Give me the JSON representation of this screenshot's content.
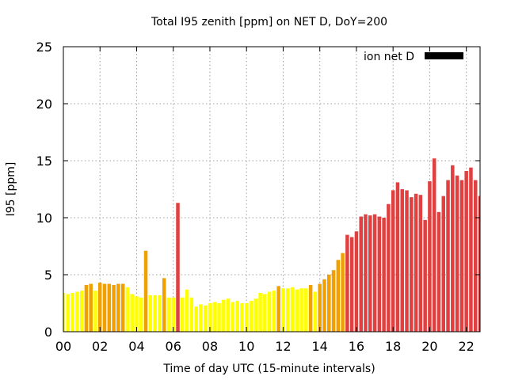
{
  "chart_data": {
    "type": "bar",
    "title": "Total I95 zenith [ppm] on NET D, DoY=200",
    "xlabel": "Time of day UTC (15-minute intervals)",
    "ylabel": "I95 [ppm]",
    "xlim": [
      0,
      22.75
    ],
    "ylim": [
      0,
      25
    ],
    "x_ticks": [
      "00",
      "02",
      "04",
      "06",
      "08",
      "10",
      "12",
      "14",
      "16",
      "18",
      "20",
      "22"
    ],
    "y_ticks": [
      "0",
      "5",
      "10",
      "15",
      "20",
      "25"
    ],
    "grid": true,
    "legend": {
      "label": "ion net D",
      "position": "top-right",
      "color": "#000000"
    },
    "bar_interval_hours": 0.25,
    "colors": {
      "low": "#ffff00",
      "moderate": "#f0a000",
      "high": "#e04040"
    },
    "values": [
      3.4,
      3.3,
      3.4,
      3.5,
      3.6,
      4.1,
      4.2,
      3.6,
      4.3,
      4.2,
      4.2,
      4.1,
      4.2,
      4.2,
      3.9,
      3.3,
      3.1,
      3.0,
      7.1,
      3.2,
      3.2,
      3.2,
      4.7,
      3.0,
      3.0,
      11.3,
      3.0,
      3.7,
      3.0,
      2.2,
      2.4,
      2.3,
      2.5,
      2.6,
      2.5,
      2.8,
      2.9,
      2.6,
      2.7,
      2.5,
      2.5,
      2.7,
      2.9,
      3.4,
      3.3,
      3.5,
      3.6,
      4.0,
      3.8,
      3.8,
      3.9,
      3.7,
      3.8,
      3.8,
      4.1,
      3.5,
      4.2,
      4.6,
      5.0,
      5.4,
      6.3,
      6.9,
      8.5,
      8.3,
      8.8,
      10.1,
      10.3,
      10.2,
      10.3,
      10.1,
      10.0,
      11.2,
      12.4,
      13.1,
      12.5,
      12.4,
      11.8,
      12.1,
      12.0,
      9.8,
      13.2,
      15.2,
      10.5,
      11.9,
      13.3,
      14.6,
      13.7,
      13.3,
      14.1,
      14.4,
      13.3,
      11.9
    ]
  }
}
